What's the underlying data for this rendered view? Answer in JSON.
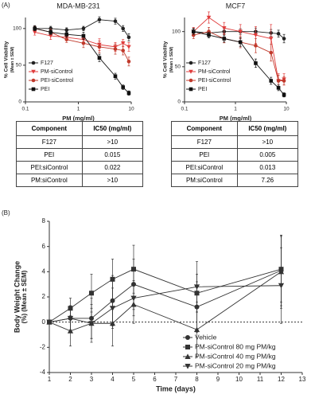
{
  "panels": [
    "(A)",
    "(B)"
  ],
  "chart_data": [
    {
      "type": "line",
      "title": "MDA-MB-231",
      "xlabel": "PM (mg/ml)",
      "ylabel": [
        "% Cell Viability",
        "(Mean ± SEM)"
      ],
      "xlog": true,
      "xlim": [
        0.1,
        10
      ],
      "xticks": [
        0.1,
        1,
        10
      ],
      "ylim": [
        0,
        115
      ],
      "yticks": [
        0,
        50,
        100
      ],
      "x": [
        0.15,
        0.3,
        0.6,
        1.25,
        2.5,
        5,
        7,
        9
      ],
      "series": [
        {
          "name": "F127",
          "color": "#222222",
          "marker": "circle",
          "values": [
            100,
            100,
            98,
            100,
            112,
            110,
            100,
            88
          ],
          "errors": [
            4,
            3,
            3,
            3,
            4,
            4,
            4,
            5
          ]
        },
        {
          "name": "PM-siControl",
          "color": "#e03c3c",
          "marker": "triangle-down",
          "values": [
            95,
            90,
            88,
            85,
            78,
            75,
            80,
            75
          ],
          "errors": [
            4,
            5,
            4,
            6,
            8,
            6,
            5,
            6
          ]
        },
        {
          "name": "PEI-siControl",
          "color": "#c0392b",
          "marker": "circle",
          "values": [
            100,
            95,
            85,
            80,
            75,
            72,
            70,
            55
          ],
          "errors": [
            3,
            4,
            4,
            6,
            8,
            7,
            6,
            6
          ]
        },
        {
          "name": "PEI",
          "color": "#111111",
          "marker": "square",
          "values": [
            100,
            95,
            92,
            90,
            60,
            35,
            20,
            12
          ],
          "errors": [
            3,
            3,
            4,
            5,
            5,
            4,
            3,
            3
          ]
        }
      ]
    },
    {
      "type": "line",
      "title": "MCF7",
      "xlabel": "PM (mg/ml)",
      "ylabel": [
        "% Cell Viability",
        "(Mean ± SEM)"
      ],
      "xlog": true,
      "xlim": [
        0.1,
        10
      ],
      "xticks": [
        0.1,
        1,
        10
      ],
      "ylim": [
        0,
        120
      ],
      "yticks": [
        0,
        50,
        100
      ],
      "x": [
        0.15,
        0.3,
        0.6,
        1.25,
        2.5,
        5,
        7,
        9
      ],
      "series": [
        {
          "name": "F127",
          "color": "#222222",
          "marker": "circle",
          "values": [
            100,
            98,
            100,
            100,
            100,
            98,
            97,
            90
          ],
          "errors": [
            5,
            4,
            4,
            4,
            5,
            5,
            5,
            6
          ]
        },
        {
          "name": "PM-siControl",
          "color": "#e03c3c",
          "marker": "triangle-down",
          "values": [
            100,
            120,
            105,
            100,
            95,
            90,
            30,
            32
          ],
          "errors": [
            6,
            8,
            8,
            10,
            12,
            20,
            10,
            8
          ]
        },
        {
          "name": "PEI-siControl",
          "color": "#c0392b",
          "marker": "circle",
          "values": [
            95,
            100,
            90,
            85,
            80,
            70,
            30,
            30
          ],
          "errors": [
            5,
            6,
            6,
            8,
            10,
            12,
            8,
            6
          ]
        },
        {
          "name": "PEI",
          "color": "#111111",
          "marker": "square",
          "values": [
            100,
            95,
            90,
            85,
            55,
            30,
            20,
            10
          ],
          "errors": [
            4,
            4,
            5,
            6,
            6,
            5,
            4,
            3
          ]
        }
      ]
    },
    {
      "type": "line",
      "xlabel": "Time (days)",
      "ylabel": [
        "Body Weight Change",
        "(%) (Mean ± SEM)"
      ],
      "xlim": [
        1,
        13
      ],
      "xticks": [
        1,
        2,
        3,
        4,
        5,
        6,
        7,
        8,
        9,
        10,
        11,
        12,
        13
      ],
      "ylim": [
        -4,
        8
      ],
      "yticks": [
        -4,
        -2,
        0,
        2,
        4,
        6,
        8
      ],
      "hline": 0,
      "x": [
        1,
        2,
        3,
        4,
        5,
        8,
        12
      ],
      "series": [
        {
          "name": "Vehicle",
          "color": "#333333",
          "marker": "circle",
          "values": [
            0,
            0.3,
            0.3,
            1.7,
            3.0,
            1.2,
            4.1
          ],
          "errors": [
            0,
            1.0,
            1.6,
            2.0,
            2.0,
            2.0,
            2.8
          ]
        },
        {
          "name": "PM-siControl 80 mg PM/kg",
          "color": "#333333",
          "marker": "square",
          "values": [
            0,
            1.1,
            2.3,
            3.4,
            4.2,
            2.3,
            4.2
          ],
          "errors": [
            0,
            0.8,
            1.5,
            1.6,
            1.9,
            1.5,
            2.6
          ]
        },
        {
          "name": "PM-siControl 40 mg PM/kg",
          "color": "#333333",
          "marker": "triangle-up",
          "values": [
            0,
            -0.7,
            -0.1,
            -0.1,
            1.4,
            -0.6,
            4.0
          ],
          "errors": [
            0,
            1.2,
            1.5,
            1.8,
            1.5,
            2.2,
            2.9
          ]
        },
        {
          "name": "PM-siControl 20 mg PM/kg",
          "color": "#333333",
          "marker": "triangle-down",
          "values": [
            0,
            0.3,
            -0.1,
            1.1,
            1.9,
            2.8,
            2.9
          ],
          "errors": [
            0,
            1.0,
            1.2,
            1.6,
            1.4,
            2.0,
            3.0
          ]
        }
      ]
    }
  ],
  "tables": [
    {
      "header": [
        "Component",
        "IC50 (mg/ml)"
      ],
      "rows": [
        [
          "F127",
          ">10"
        ],
        [
          "PEI",
          "0.015"
        ],
        [
          "PEI:siControl",
          "0.022"
        ],
        [
          "PM:siControl",
          ">10"
        ]
      ]
    },
    {
      "header": [
        "Component",
        "IC50 (mg/ml)"
      ],
      "rows": [
        [
          "F127",
          ">10"
        ],
        [
          "PEI",
          "0.005"
        ],
        [
          "PEI:siControl",
          "0.013"
        ],
        [
          "PM:siControl",
          "7.26"
        ]
      ]
    }
  ]
}
